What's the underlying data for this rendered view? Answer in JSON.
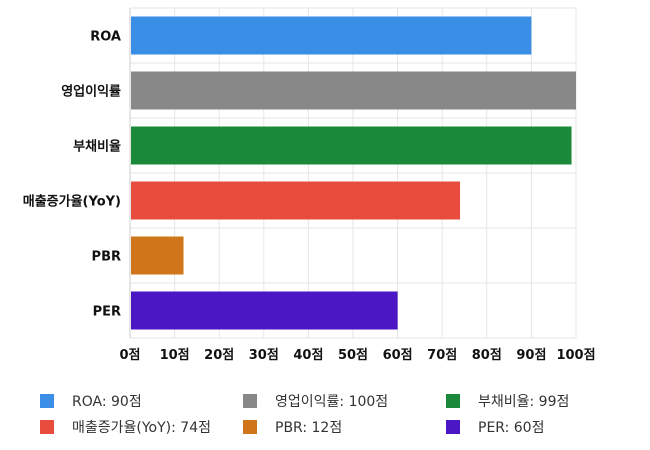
{
  "chart_data": {
    "type": "bar",
    "orientation": "horizontal",
    "categories": [
      "ROA",
      "영업이익률",
      "부채비율",
      "매출증가율(YoY)",
      "PBR",
      "PER"
    ],
    "values": [
      90,
      100,
      99,
      74,
      12,
      60
    ],
    "colors": [
      "#3a8ee6",
      "#888888",
      "#1a8a3a",
      "#e84c3d",
      "#d0761a",
      "#4b16c3"
    ],
    "xlim": [
      0,
      100
    ],
    "xticks": [
      0,
      10,
      20,
      30,
      40,
      50,
      60,
      70,
      80,
      90,
      100
    ],
    "tick_suffix": "점",
    "grid": true,
    "legend_position": "bottom",
    "legend": [
      "ROA: 90점",
      "영업이익률: 100점",
      "부채비율: 99점",
      "매출증가율(YoY): 74점",
      "PBR: 12점",
      "PER: 60점"
    ]
  }
}
